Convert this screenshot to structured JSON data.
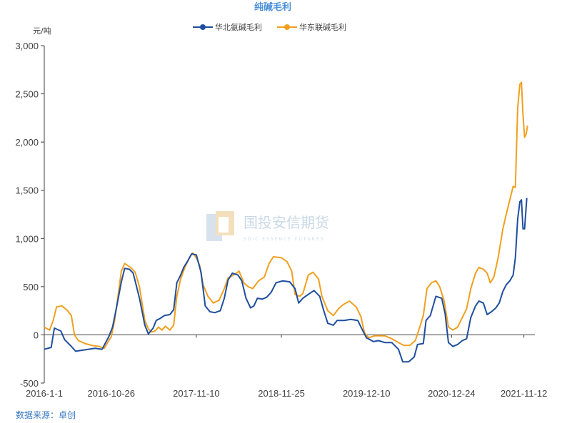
{
  "chart_data": {
    "type": "line",
    "title": "纯碱毛利",
    "unit_label": "元/吨",
    "source": "数据来源：卓创",
    "watermark": {
      "text": "国投安信期货",
      "subtext": "SDIC ESSENCE FUTURES"
    },
    "legend_position": "top-center",
    "grid": false,
    "ylim": [
      -500,
      3000
    ],
    "yticks": [
      -500,
      0,
      500,
      1000,
      1500,
      2000,
      2500,
      3000
    ],
    "ytick_labels": [
      "-500",
      "0",
      "500",
      "1,000",
      "1,500",
      "2,000",
      "2,500",
      "3,000"
    ],
    "xlim": [
      "2016-01-01",
      "2021-12-31"
    ],
    "xticks": [
      "2016-01-01",
      "2016-10-26",
      "2017-11-10",
      "2018-11-25",
      "2019-12-10",
      "2020-12-24",
      "2021-11-12"
    ],
    "xtick_labels": [
      "2016-1-1",
      "2016-10-26",
      "2017-11-10",
      "2018-11-25",
      "2019-12-10",
      "2020-12-24",
      "2021-11-12"
    ],
    "colors": {
      "华北氨碱毛利": "#1f4e9e",
      "华东联碱毛利": "#f0a020"
    },
    "series": [
      {
        "name": "华北氨碱毛利",
        "color": "#1f4e9e",
        "points": [
          [
            "2016-01-01",
            -150
          ],
          [
            "2016-02-01",
            -130
          ],
          [
            "2016-02-15",
            70
          ],
          [
            "2016-03-15",
            40
          ],
          [
            "2016-04-01",
            -50
          ],
          [
            "2016-05-01",
            -120
          ],
          [
            "2016-05-20",
            -170
          ],
          [
            "2016-06-15",
            -160
          ],
          [
            "2016-07-15",
            -150
          ],
          [
            "2016-08-15",
            -140
          ],
          [
            "2016-09-15",
            -150
          ],
          [
            "2016-10-15",
            -20
          ],
          [
            "2016-11-01",
            80
          ],
          [
            "2016-11-20",
            300
          ],
          [
            "2016-12-10",
            550
          ],
          [
            "2016-12-25",
            690
          ],
          [
            "2017-01-15",
            680
          ],
          [
            "2017-02-01",
            640
          ],
          [
            "2017-03-01",
            380
          ],
          [
            "2017-03-25",
            100
          ],
          [
            "2017-04-10",
            10
          ],
          [
            "2017-05-01",
            70
          ],
          [
            "2017-05-15",
            150
          ],
          [
            "2017-06-01",
            170
          ],
          [
            "2017-06-20",
            200
          ],
          [
            "2017-07-15",
            210
          ],
          [
            "2017-08-01",
            260
          ],
          [
            "2017-08-15",
            540
          ],
          [
            "2017-09-01",
            620
          ],
          [
            "2017-09-15",
            700
          ],
          [
            "2017-10-01",
            760
          ],
          [
            "2017-10-20",
            840
          ],
          [
            "2017-11-10",
            830
          ],
          [
            "2017-12-01",
            650
          ],
          [
            "2017-12-20",
            300
          ],
          [
            "2018-01-10",
            240
          ],
          [
            "2018-02-01",
            230
          ],
          [
            "2018-02-25",
            250
          ],
          [
            "2018-03-15",
            380
          ],
          [
            "2018-04-01",
            570
          ],
          [
            "2018-04-20",
            640
          ],
          [
            "2018-05-15",
            620
          ],
          [
            "2018-06-01",
            560
          ],
          [
            "2018-06-20",
            380
          ],
          [
            "2018-07-10",
            280
          ],
          [
            "2018-07-25",
            300
          ],
          [
            "2018-08-10",
            380
          ],
          [
            "2018-09-01",
            370
          ],
          [
            "2018-09-20",
            390
          ],
          [
            "2018-10-10",
            440
          ],
          [
            "2018-11-01",
            540
          ],
          [
            "2018-12-01",
            560
          ],
          [
            "2019-01-01",
            550
          ],
          [
            "2019-01-25",
            480
          ],
          [
            "2019-02-10",
            330
          ],
          [
            "2019-03-01",
            380
          ],
          [
            "2019-03-25",
            420
          ],
          [
            "2019-04-20",
            460
          ],
          [
            "2019-05-15",
            400
          ],
          [
            "2019-06-01",
            260
          ],
          [
            "2019-06-20",
            120
          ],
          [
            "2019-07-15",
            100
          ],
          [
            "2019-08-01",
            150
          ],
          [
            "2019-09-01",
            150
          ],
          [
            "2019-10-01",
            160
          ],
          [
            "2019-11-01",
            150
          ],
          [
            "2019-11-20",
            60
          ],
          [
            "2019-12-10",
            -30
          ],
          [
            "2020-01-10",
            -70
          ],
          [
            "2020-02-01",
            -60
          ],
          [
            "2020-03-01",
            -80
          ],
          [
            "2020-04-01",
            -80
          ],
          [
            "2020-05-01",
            -150
          ],
          [
            "2020-05-20",
            -280
          ],
          [
            "2020-06-15",
            -280
          ],
          [
            "2020-07-10",
            -230
          ],
          [
            "2020-07-25",
            -100
          ],
          [
            "2020-08-20",
            -90
          ],
          [
            "2020-09-01",
            150
          ],
          [
            "2020-09-20",
            200
          ],
          [
            "2020-10-15",
            400
          ],
          [
            "2020-11-10",
            380
          ],
          [
            "2020-11-25",
            220
          ],
          [
            "2020-12-10",
            -80
          ],
          [
            "2020-12-30",
            -120
          ],
          [
            "2021-01-20",
            -100
          ],
          [
            "2021-02-10",
            -60
          ],
          [
            "2021-03-01",
            -40
          ],
          [
            "2021-03-20",
            180
          ],
          [
            "2021-04-10",
            300
          ],
          [
            "2021-04-25",
            350
          ],
          [
            "2021-05-15",
            330
          ],
          [
            "2021-06-01",
            210
          ],
          [
            "2021-06-20",
            240
          ],
          [
            "2021-07-10",
            280
          ],
          [
            "2021-07-25",
            330
          ],
          [
            "2021-08-10",
            450
          ],
          [
            "2021-08-25",
            520
          ],
          [
            "2021-09-10",
            560
          ],
          [
            "2021-09-25",
            620
          ],
          [
            "2021-10-05",
            800
          ],
          [
            "2021-10-15",
            1200
          ],
          [
            "2021-10-25",
            1380
          ],
          [
            "2021-11-01",
            1400
          ],
          [
            "2021-11-08",
            1100
          ],
          [
            "2021-11-15",
            1100
          ],
          [
            "2021-11-25",
            1420
          ]
        ]
      },
      {
        "name": "华东联碱毛利",
        "color": "#f0a020",
        "points": [
          [
            "2016-01-01",
            80
          ],
          [
            "2016-01-25",
            50
          ],
          [
            "2016-02-10",
            150
          ],
          [
            "2016-02-25",
            290
          ],
          [
            "2016-03-20",
            300
          ],
          [
            "2016-04-10",
            260
          ],
          [
            "2016-05-01",
            200
          ],
          [
            "2016-05-15",
            0
          ],
          [
            "2016-06-01",
            -60
          ],
          [
            "2016-07-01",
            -90
          ],
          [
            "2016-08-01",
            -110
          ],
          [
            "2016-09-01",
            -120
          ],
          [
            "2016-09-25",
            -140
          ],
          [
            "2016-10-10",
            -80
          ],
          [
            "2016-10-26",
            -20
          ],
          [
            "2016-11-10",
            150
          ],
          [
            "2016-11-25",
            400
          ],
          [
            "2016-12-10",
            660
          ],
          [
            "2016-12-25",
            740
          ],
          [
            "2017-01-20",
            700
          ],
          [
            "2017-02-10",
            650
          ],
          [
            "2017-03-01",
            500
          ],
          [
            "2017-03-25",
            150
          ],
          [
            "2017-04-10",
            60
          ],
          [
            "2017-04-25",
            30
          ],
          [
            "2017-05-10",
            40
          ],
          [
            "2017-05-25",
            80
          ],
          [
            "2017-06-10",
            50
          ],
          [
            "2017-06-25",
            90
          ],
          [
            "2017-07-15",
            50
          ],
          [
            "2017-08-01",
            100
          ],
          [
            "2017-08-15",
            400
          ],
          [
            "2017-09-01",
            580
          ],
          [
            "2017-09-20",
            700
          ],
          [
            "2017-10-10",
            800
          ],
          [
            "2017-10-25",
            850
          ],
          [
            "2017-11-10",
            800
          ],
          [
            "2017-11-25",
            720
          ],
          [
            "2017-12-10",
            520
          ],
          [
            "2018-01-01",
            400
          ],
          [
            "2018-01-25",
            330
          ],
          [
            "2018-02-20",
            360
          ],
          [
            "2018-03-15",
            480
          ],
          [
            "2018-04-01",
            590
          ],
          [
            "2018-04-25",
            620
          ],
          [
            "2018-05-20",
            660
          ],
          [
            "2018-06-10",
            540
          ],
          [
            "2018-06-30",
            500
          ],
          [
            "2018-07-20",
            480
          ],
          [
            "2018-08-15",
            560
          ],
          [
            "2018-09-10",
            600
          ],
          [
            "2018-10-01",
            740
          ],
          [
            "2018-10-20",
            810
          ],
          [
            "2018-11-25",
            800
          ],
          [
            "2018-12-20",
            760
          ],
          [
            "2019-01-10",
            660
          ],
          [
            "2019-01-25",
            420
          ],
          [
            "2019-02-15",
            400
          ],
          [
            "2019-03-01",
            430
          ],
          [
            "2019-03-25",
            620
          ],
          [
            "2019-04-15",
            650
          ],
          [
            "2019-05-10",
            580
          ],
          [
            "2019-05-25",
            400
          ],
          [
            "2019-06-20",
            250
          ],
          [
            "2019-07-15",
            200
          ],
          [
            "2019-08-10",
            280
          ],
          [
            "2019-09-01",
            320
          ],
          [
            "2019-09-25",
            350
          ],
          [
            "2019-10-25",
            290
          ],
          [
            "2019-11-15",
            190
          ],
          [
            "2019-12-01",
            20
          ],
          [
            "2019-12-20",
            -30
          ],
          [
            "2020-01-15",
            -10
          ],
          [
            "2020-02-01",
            -10
          ],
          [
            "2020-03-01",
            -10
          ],
          [
            "2020-04-01",
            -40
          ],
          [
            "2020-05-01",
            -80
          ],
          [
            "2020-05-25",
            -110
          ],
          [
            "2020-06-20",
            -110
          ],
          [
            "2020-07-15",
            -60
          ],
          [
            "2020-08-01",
            60
          ],
          [
            "2020-08-20",
            200
          ],
          [
            "2020-09-05",
            480
          ],
          [
            "2020-09-25",
            540
          ],
          [
            "2020-10-15",
            560
          ],
          [
            "2020-11-01",
            500
          ],
          [
            "2020-11-20",
            360
          ],
          [
            "2020-12-10",
            80
          ],
          [
            "2020-12-30",
            50
          ],
          [
            "2021-01-20",
            80
          ],
          [
            "2021-02-10",
            180
          ],
          [
            "2021-03-01",
            270
          ],
          [
            "2021-03-20",
            480
          ],
          [
            "2021-04-10",
            640
          ],
          [
            "2021-04-25",
            700
          ],
          [
            "2021-05-15",
            680
          ],
          [
            "2021-06-01",
            640
          ],
          [
            "2021-06-15",
            540
          ],
          [
            "2021-07-01",
            600
          ],
          [
            "2021-07-20",
            800
          ],
          [
            "2021-08-10",
            1100
          ],
          [
            "2021-08-25",
            1250
          ],
          [
            "2021-09-10",
            1400
          ],
          [
            "2021-09-25",
            1540
          ],
          [
            "2021-10-05",
            1530
          ],
          [
            "2021-10-15",
            2350
          ],
          [
            "2021-10-25",
            2600
          ],
          [
            "2021-11-01",
            2620
          ],
          [
            "2021-11-08",
            2280
          ],
          [
            "2021-11-15",
            2050
          ],
          [
            "2021-11-22",
            2080
          ],
          [
            "2021-11-28",
            2170
          ]
        ]
      }
    ]
  }
}
